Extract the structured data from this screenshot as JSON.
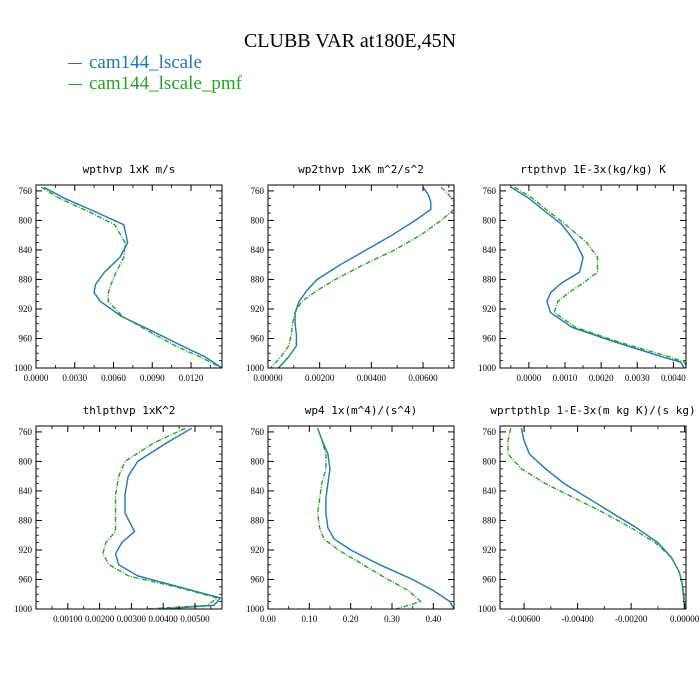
{
  "title": "CLUBB VAR at180E,45N",
  "colors": {
    "series1": "#1f77b4",
    "series2": "#2ca02c"
  },
  "legend": [
    {
      "label": "cam144_lscale",
      "color": "#1f77b4"
    },
    {
      "label": "cam144_lscale_pmf",
      "color": "#2ca02c"
    }
  ],
  "chart_data": [
    {
      "type": "line",
      "title": "wpthvp  1xK m/s",
      "xlim": [
        0,
        0.0144
      ],
      "ylim": [
        1000,
        752
      ],
      "xticks": [
        0,
        0.003,
        0.006,
        0.009,
        0.012
      ],
      "xtick_labels": [
        "0.0000",
        "0.0030",
        "0.0060",
        "0.0090",
        "0.0120"
      ],
      "yticks": [
        760,
        800,
        840,
        880,
        920,
        960,
        1000
      ],
      "ytick_labels": [
        "760",
        "800",
        "840",
        "880",
        "920",
        "960",
        "1000"
      ],
      "y": [
        755,
        770,
        790,
        806,
        830,
        850,
        870,
        887,
        898,
        910,
        930,
        950,
        970,
        985,
        1000
      ],
      "series": [
        {
          "name": "cam144_lscale",
          "x": [
            0.0006,
            0.0022,
            0.0048,
            0.0068,
            0.0071,
            0.0065,
            0.0053,
            0.0046,
            0.0045,
            0.005,
            0.0066,
            0.009,
            0.0113,
            0.0131,
            0.0144
          ]
        },
        {
          "name": "cam144_lscale_pmf",
          "x": [
            0.0004,
            0.0018,
            0.0043,
            0.0061,
            0.0069,
            0.0068,
            0.0062,
            0.0058,
            0.0056,
            0.0056,
            0.0067,
            0.0087,
            0.0108,
            0.0127,
            0.0144
          ]
        }
      ]
    },
    {
      "type": "line",
      "title": "wp2thvp  1xK m^2/s^2",
      "xlim": [
        0,
        0.0072
      ],
      "ylim": [
        1000,
        752
      ],
      "xticks": [
        0,
        0.002,
        0.004,
        0.006
      ],
      "xtick_labels": [
        "0.00000",
        "0.00200",
        "0.00400",
        "0.00600"
      ],
      "yticks": [
        760,
        800,
        840,
        880,
        920,
        960,
        1000
      ],
      "ytick_labels": [
        "760",
        "800",
        "840",
        "880",
        "920",
        "960",
        "1000"
      ],
      "y": [
        755,
        765,
        775,
        785,
        800,
        820,
        840,
        860,
        880,
        895,
        910,
        925,
        940,
        955,
        970,
        985,
        1000
      ],
      "series": [
        {
          "name": "cam144_lscale",
          "x": [
            0.006,
            0.0062,
            0.0063,
            0.0063,
            0.0057,
            0.0048,
            0.0038,
            0.0028,
            0.0019,
            0.0015,
            0.0012,
            0.00105,
            0.00105,
            0.0011,
            0.0011,
            0.0008,
            0.0004
          ]
        },
        {
          "name": "cam144_lscale_pmf",
          "x": [
            0.0067,
            0.007,
            0.0072,
            0.0072,
            0.0067,
            0.0059,
            0.0049,
            0.0037,
            0.0026,
            0.0019,
            0.0013,
            0.00105,
            0.00095,
            0.0009,
            0.0008,
            0.0005,
            0.0001
          ]
        }
      ]
    },
    {
      "type": "line",
      "title": "rtpthvp  1E-3x(kg/kg) K",
      "xlim": [
        -0.0008,
        0.00435
      ],
      "ylim": [
        1000,
        752
      ],
      "xticks": [
        0,
        0.001,
        0.002,
        0.003,
        0.004
      ],
      "xtick_labels": [
        "0.0000",
        "0.0010",
        "0.0020",
        "0.0030",
        "0.0040"
      ],
      "yticks": [
        760,
        800,
        840,
        880,
        920,
        960,
        1000
      ],
      "ytick_labels": [
        "760",
        "800",
        "840",
        "880",
        "920",
        "960",
        "1000"
      ],
      "y": [
        755,
        770,
        790,
        805,
        830,
        850,
        870,
        885,
        898,
        910,
        925,
        945,
        965,
        985,
        992,
        1000
      ],
      "series": [
        {
          "name": "cam144_lscale",
          "x": [
            -0.0005,
            0.0,
            0.0005,
            0.0009,
            0.0013,
            0.0015,
            0.0014,
            0.0009,
            0.0006,
            0.0005,
            0.0006,
            0.0012,
            0.0024,
            0.0037,
            0.0042,
            0.0043
          ]
        },
        {
          "name": "cam144_lscale_pmf",
          "x": [
            -0.0004,
            0.0001,
            0.0006,
            0.001,
            0.0016,
            0.0019,
            0.0019,
            0.0015,
            0.0011,
            0.0008,
            0.0007,
            0.0013,
            0.0025,
            0.0039,
            0.0043,
            0.0044
          ]
        }
      ]
    },
    {
      "type": "line",
      "title": "thlpthvp  1xK^2",
      "xlim": [
        0,
        0.00585
      ],
      "ylim": [
        1000,
        752
      ],
      "xticks": [
        0.001,
        0.002,
        0.003,
        0.004,
        0.005
      ],
      "xtick_labels": [
        "0.00100",
        "0.00200",
        "0.00300",
        "0.00400",
        "0.00500"
      ],
      "yticks": [
        760,
        800,
        840,
        880,
        920,
        960,
        1000
      ],
      "ytick_labels": [
        "760",
        "800",
        "840",
        "880",
        "920",
        "960",
        "1000"
      ],
      "y": [
        755,
        775,
        800,
        820,
        845,
        870,
        895,
        910,
        925,
        940,
        955,
        970,
        985,
        995,
        1000
      ],
      "series": [
        {
          "name": "cam144_lscale",
          "x": [
            0.0049,
            0.0041,
            0.0032,
            0.0029,
            0.0028,
            0.0028,
            0.0031,
            0.0027,
            0.0025,
            0.0026,
            0.0032,
            0.0045,
            0.0058,
            0.0056,
            0.004
          ]
        },
        {
          "name": "cam144_lscale_pmf",
          "x": [
            0.0047,
            0.0037,
            0.0028,
            0.0026,
            0.0025,
            0.0025,
            0.0025,
            0.0022,
            0.0021,
            0.0023,
            0.0029,
            0.0044,
            0.0057,
            0.0054,
            0.0035
          ]
        }
      ]
    },
    {
      "type": "line",
      "title": "wp4  1x(m^4)/(s^4)",
      "xlim": [
        0,
        0.45
      ],
      "ylim": [
        1000,
        752
      ],
      "xticks": [
        0,
        0.1,
        0.2,
        0.3,
        0.4
      ],
      "xtick_labels": [
        "0.00",
        "0.10",
        "0.20",
        "0.30",
        "0.40"
      ],
      "yticks": [
        760,
        800,
        840,
        880,
        920,
        960,
        1000
      ],
      "ytick_labels": [
        "760",
        "800",
        "840",
        "880",
        "920",
        "960",
        "1000"
      ],
      "y": [
        755,
        770,
        790,
        810,
        830,
        850,
        870,
        890,
        905,
        920,
        940,
        960,
        975,
        990,
        1000
      ],
      "series": [
        {
          "name": "cam144_lscale",
          "x": [
            0.12,
            0.13,
            0.145,
            0.15,
            0.145,
            0.14,
            0.14,
            0.145,
            0.16,
            0.2,
            0.27,
            0.35,
            0.4,
            0.44,
            0.45
          ]
        },
        {
          "name": "cam144_lscale_pmf",
          "x": [
            0.12,
            0.13,
            0.14,
            0.14,
            0.13,
            0.125,
            0.12,
            0.125,
            0.135,
            0.17,
            0.23,
            0.29,
            0.34,
            0.37,
            0.31
          ]
        }
      ]
    },
    {
      "type": "line",
      "title": "wprtpthlp  1-E-3x(m kg K)/(s kg)",
      "xlim": [
        -0.0069,
        5e-05
      ],
      "ylim": [
        1000,
        752
      ],
      "xticks": [
        -0.006,
        -0.004,
        -0.002,
        0
      ],
      "xtick_labels": [
        "-0.00600",
        "-0.00400",
        "-0.00200",
        "0.00000"
      ],
      "yticks": [
        760,
        800,
        840,
        880,
        920,
        960,
        1000
      ],
      "ytick_labels": [
        "760",
        "800",
        "840",
        "880",
        "920",
        "960",
        "1000"
      ],
      "y": [
        755,
        772,
        790,
        810,
        830,
        850,
        870,
        890,
        910,
        930,
        950,
        965,
        980,
        992,
        1000
      ],
      "series": [
        {
          "name": "cam144_lscale",
          "x": [
            -0.0061,
            -0.006,
            -0.0058,
            -0.0052,
            -0.0045,
            -0.0036,
            -0.0027,
            -0.0018,
            -0.001,
            -0.0005,
            -0.0002,
            -0.0001,
            -5e-05,
            -2e-05,
            -1e-05
          ]
        },
        {
          "name": "cam144_lscale_pmf",
          "x": [
            -0.0065,
            -0.0066,
            -0.0066,
            -0.0061,
            -0.0052,
            -0.0041,
            -0.003,
            -0.002,
            -0.0011,
            -0.0005,
            -0.0002,
            -0.0001,
            -3e-05,
            -1e-05,
            0
          ]
        }
      ]
    }
  ]
}
